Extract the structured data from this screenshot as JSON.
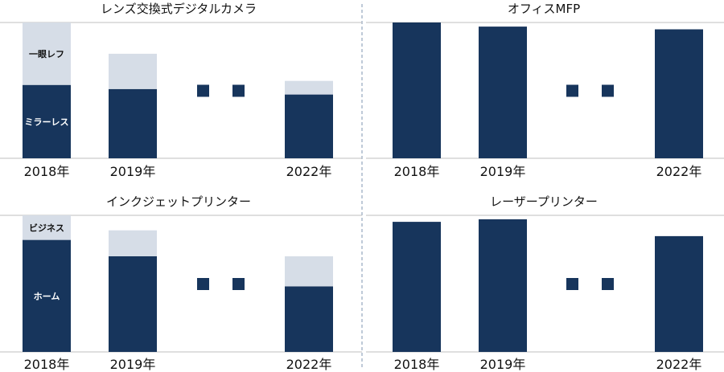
{
  "colors": {
    "dark": "#17355c",
    "light": "#d6dde7",
    "axis": "#bfbfbf",
    "divider": "#7f94b0",
    "text": "#111111"
  },
  "chart_data": [
    {
      "type": "bar",
      "title": "レンズ交換式デジタルカメラ",
      "categories": [
        "2018年",
        "2019年",
        "2022年"
      ],
      "series": [
        {
          "name": "ミラーレス",
          "values": [
            54,
            51,
            47
          ]
        },
        {
          "name": "一眼レフ",
          "values": [
            46,
            26,
            10
          ]
        }
      ],
      "ylim": [
        0,
        100
      ],
      "grid": false,
      "legend": "inside-first-bar"
    },
    {
      "type": "bar",
      "title": "オフィスMFP",
      "categories": [
        "2018年",
        "2019年",
        "2022年"
      ],
      "series": [
        {
          "values": [
            100,
            97,
            95
          ]
        }
      ],
      "ylim": [
        0,
        100
      ],
      "grid": false
    },
    {
      "type": "bar",
      "title": "インクジェットプリンター",
      "categories": [
        "2018年",
        "2019年",
        "2022年"
      ],
      "series": [
        {
          "name": "ホーム",
          "values": [
            82,
            70,
            48
          ]
        },
        {
          "name": "ビジネス",
          "values": [
            18,
            19,
            22
          ]
        }
      ],
      "ylim": [
        0,
        100
      ],
      "grid": false,
      "legend": "inside-first-bar"
    },
    {
      "type": "bar",
      "title": "レーザープリンター",
      "categories": [
        "2018年",
        "2019年",
        "2022年"
      ],
      "series": [
        {
          "values": [
            100,
            102,
            89
          ]
        }
      ],
      "ylim": [
        0,
        105
      ],
      "grid": false
    }
  ]
}
